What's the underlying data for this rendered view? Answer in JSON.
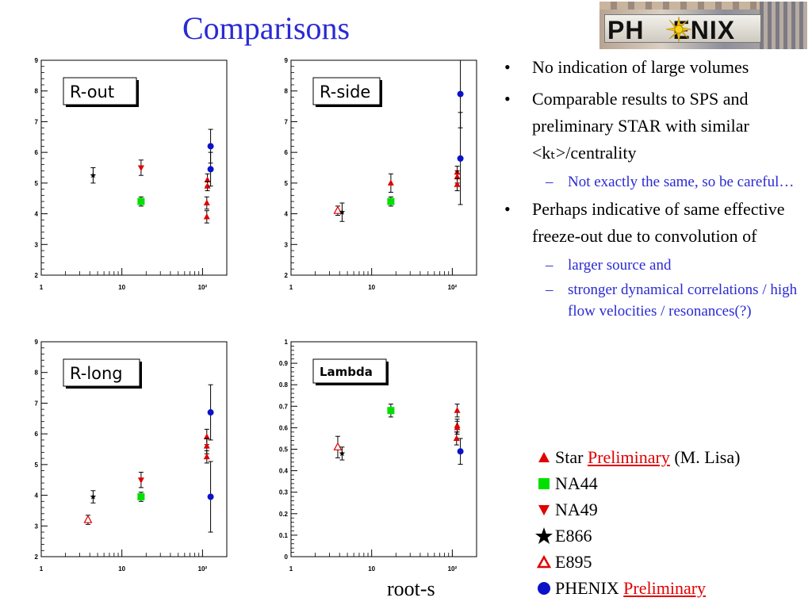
{
  "slide": {
    "title": "Comparisons",
    "logo_text_pre": "PH",
    "logo_text_post": "ENIX",
    "x_axis_label": "root-s"
  },
  "bullets": [
    {
      "level": 1,
      "text": "No indication of large volumes"
    },
    {
      "level": 1,
      "text": "Comparable results to SPS and preliminary STAR with similar <kₜ>/centrality"
    },
    {
      "level": 2,
      "text": "Not exactly the same, so be careful…"
    },
    {
      "level": 1,
      "text": "Perhaps indicative of same effective freeze-out due to convolution of"
    },
    {
      "level": 2,
      "text": "larger source and"
    },
    {
      "level": 2,
      "text": "stronger dynamical correlations / high flow velocities / resonances(?)"
    }
  ],
  "legend": [
    {
      "symbol": "triangle-up",
      "color": "#e00000",
      "name": "Star",
      "underlined": "Preliminary",
      "suffix": "(M. Lisa)"
    },
    {
      "symbol": "square",
      "color": "#00e000",
      "name": "NA44",
      "underlined": "",
      "suffix": ""
    },
    {
      "symbol": "triangle-down",
      "color": "#e00000",
      "name": "NA49",
      "underlined": "",
      "suffix": ""
    },
    {
      "symbol": "star",
      "color": "#000000",
      "name": "E866",
      "underlined": "",
      "suffix": ""
    },
    {
      "symbol": "triangle-up-open",
      "color": "#e00000",
      "name": "E895",
      "underlined": "",
      "suffix": ""
    },
    {
      "symbol": "circle",
      "color": "#0a12c8",
      "name": "PHENIX",
      "underlined": "Preliminary",
      "suffix": ""
    }
  ],
  "colors": {
    "title": "#2a2ad4",
    "sub_bullet": "#2a2ad4",
    "star": "#e00000",
    "na44": "#00e000",
    "phenix": "#0a12c8"
  },
  "chart_data": [
    {
      "type": "scatter",
      "title": "R-out",
      "xscale": "log",
      "xlim": [
        1,
        200
      ],
      "ylim": [
        2,
        9
      ],
      "xticks": [
        "1",
        "10",
        "10²"
      ],
      "yticks": [
        "2",
        "3",
        "4",
        "5",
        "6",
        "7",
        "8",
        "9"
      ],
      "series": [
        {
          "name": "E866",
          "points": [
            {
              "x": 4.4,
              "y": 5.25,
              "err": 0.25
            }
          ]
        },
        {
          "name": "NA44",
          "points": [
            {
              "x": 17.3,
              "y": 4.4,
              "err": 0.15
            }
          ]
        },
        {
          "name": "NA49",
          "points": [
            {
              "x": 17.3,
              "y": 5.5,
              "err": 0.25
            }
          ]
        },
        {
          "name": "Star",
          "points": [
            {
              "x": 115,
              "y": 5.1,
              "err": 0.2
            },
            {
              "x": 115,
              "y": 4.9,
              "err": 0.15
            },
            {
              "x": 113,
              "y": 4.35,
              "err": 0.2
            },
            {
              "x": 113,
              "y": 3.9,
              "err": 0.2
            }
          ]
        },
        {
          "name": "PHENIX",
          "points": [
            {
              "x": 126,
              "y": 6.2,
              "err": 0.55
            },
            {
              "x": 126,
              "y": 5.45,
              "err": 0.55
            }
          ]
        }
      ]
    },
    {
      "type": "scatter",
      "title": "R-side",
      "xscale": "log",
      "xlim": [
        1,
        200
      ],
      "ylim": [
        2,
        9
      ],
      "xticks": [
        "1",
        "10",
        "10²"
      ],
      "yticks": [
        "2",
        "3",
        "4",
        "5",
        "6",
        "7",
        "8",
        "9"
      ],
      "series": [
        {
          "name": "E895",
          "points": [
            {
              "x": 3.8,
              "y": 4.1,
              "err": 0.15
            }
          ]
        },
        {
          "name": "E866",
          "points": [
            {
              "x": 4.3,
              "y": 4.05,
              "err": 0.3
            }
          ]
        },
        {
          "name": "NA44",
          "points": [
            {
              "x": 17.3,
              "y": 4.4,
              "err": 0.15
            }
          ]
        },
        {
          "name": "Star",
          "points": [
            {
              "x": 17.3,
              "y": 5.0,
              "err": 0.3
            },
            {
              "x": 115,
              "y": 5.35,
              "err": 0.2
            },
            {
              "x": 115,
              "y": 5.2,
              "err": 0.2
            },
            {
              "x": 115,
              "y": 4.95,
              "err": 0.2
            }
          ]
        },
        {
          "name": "PHENIX",
          "points": [
            {
              "x": 126,
              "y": 7.9,
              "err": 1.1
            },
            {
              "x": 126,
              "y": 5.8,
              "err": 1.5
            }
          ]
        }
      ]
    },
    {
      "type": "scatter",
      "title": "R-long",
      "xscale": "log",
      "xlim": [
        1,
        200
      ],
      "ylim": [
        2,
        9
      ],
      "xticks": [
        "1",
        "10",
        "10²"
      ],
      "yticks": [
        "2",
        "3",
        "4",
        "5",
        "6",
        "7",
        "8",
        "9"
      ],
      "series": [
        {
          "name": "E895",
          "points": [
            {
              "x": 3.8,
              "y": 3.2,
              "err": 0.15
            }
          ]
        },
        {
          "name": "E866",
          "points": [
            {
              "x": 4.4,
              "y": 3.95,
              "err": 0.2
            }
          ]
        },
        {
          "name": "NA44",
          "points": [
            {
              "x": 17.3,
              "y": 3.95,
              "err": 0.15
            }
          ]
        },
        {
          "name": "NA49",
          "points": [
            {
              "x": 17.3,
              "y": 4.5,
              "err": 0.25
            }
          ]
        },
        {
          "name": "Star",
          "points": [
            {
              "x": 113,
              "y": 5.9,
              "err": 0.25
            },
            {
              "x": 113,
              "y": 5.6,
              "err": 0.25
            },
            {
              "x": 113,
              "y": 5.25,
              "err": 0.2
            }
          ]
        },
        {
          "name": "PHENIX",
          "points": [
            {
              "x": 126,
              "y": 6.7,
              "err": 0.9
            },
            {
              "x": 126,
              "y": 3.95,
              "err": 1.15
            }
          ]
        }
      ]
    },
    {
      "type": "scatter",
      "title": "Lambda",
      "xscale": "log",
      "xlim": [
        1,
        200
      ],
      "ylim": [
        0,
        1
      ],
      "xticks": [
        "1",
        "10",
        "10²"
      ],
      "yticks": [
        "0",
        "0.1",
        "0.2",
        "0.3",
        "0.4",
        "0.5",
        "0.6",
        "0.7",
        "0.8",
        "0.9",
        "1"
      ],
      "series": [
        {
          "name": "E895",
          "points": [
            {
              "x": 3.8,
              "y": 0.51,
              "err": 0.05
            }
          ]
        },
        {
          "name": "E866",
          "points": [
            {
              "x": 4.3,
              "y": 0.48,
              "err": 0.03
            }
          ]
        },
        {
          "name": "NA44",
          "points": [
            {
              "x": 17.3,
              "y": 0.68,
              "err": 0.03
            }
          ]
        },
        {
          "name": "Star",
          "points": [
            {
              "x": 115,
              "y": 0.68,
              "err": 0.03
            },
            {
              "x": 115,
              "y": 0.61,
              "err": 0.03
            },
            {
              "x": 115,
              "y": 0.6,
              "err": 0.03
            },
            {
              "x": 113,
              "y": 0.55,
              "err": 0.03
            }
          ]
        },
        {
          "name": "PHENIX",
          "points": [
            {
              "x": 126,
              "y": 0.49,
              "err": 0.06
            }
          ]
        }
      ]
    }
  ]
}
